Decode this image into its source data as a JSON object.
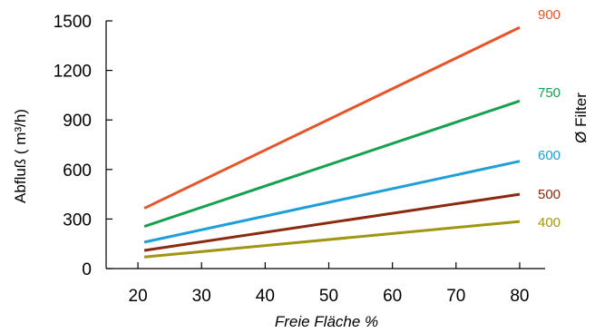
{
  "chart_data": {
    "type": "line",
    "title": "",
    "xlabel": "Freie Fläche %",
    "ylabel": "Abfluß ( m³/h)",
    "legend_title": "Ø Filter",
    "legend_placement": "right",
    "grid": false,
    "xlim": [
      15,
      84
    ],
    "ylim": [
      0,
      1500
    ],
    "x_ticks": [
      20,
      30,
      40,
      50,
      60,
      70,
      80
    ],
    "y_ticks": [
      0,
      300,
      600,
      900,
      1200,
      1500
    ],
    "series": [
      {
        "name": "900",
        "color": "#e8542a",
        "x": [
          21,
          80
        ],
        "values": [
          365,
          1460
        ]
      },
      {
        "name": "750",
        "color": "#16a050",
        "x": [
          21,
          80
        ],
        "values": [
          255,
          1015
        ]
      },
      {
        "name": "600",
        "color": "#1e9fd8",
        "x": [
          21,
          80
        ],
        "values": [
          160,
          650
        ]
      },
      {
        "name": "500",
        "color": "#8b2a0e",
        "x": [
          21,
          80
        ],
        "values": [
          110,
          450
        ]
      },
      {
        "name": "400",
        "color": "#a09614",
        "x": [
          21,
          80
        ],
        "values": [
          70,
          285
        ]
      }
    ]
  }
}
